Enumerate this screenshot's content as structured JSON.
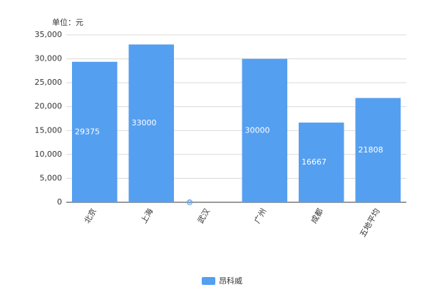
{
  "chart_data": {
    "type": "bar",
    "ylabel": "单位：元",
    "categories": [
      "北京",
      "上海",
      "武汉",
      "广州",
      "成都",
      "五地平均"
    ],
    "series": [
      {
        "name": "昂科威",
        "color": "#559ff0",
        "values": [
          29375,
          33000,
          0,
          30000,
          16667,
          21808
        ]
      }
    ],
    "ylim": [
      0,
      35000
    ],
    "yticks": [
      0,
      {
        "value": 5000,
        "label": "5,000"
      },
      {
        "value": 10000,
        "label": "10,000"
      },
      {
        "value": 15000,
        "label": "15,000"
      },
      {
        "value": 20000,
        "label": "20,000"
      },
      {
        "value": 25000,
        "label": "25,000"
      },
      {
        "value": 30000,
        "label": "30,000"
      },
      {
        "value": 35000,
        "label": "35,000"
      }
    ],
    "grid": true,
    "legend": "bottom"
  }
}
